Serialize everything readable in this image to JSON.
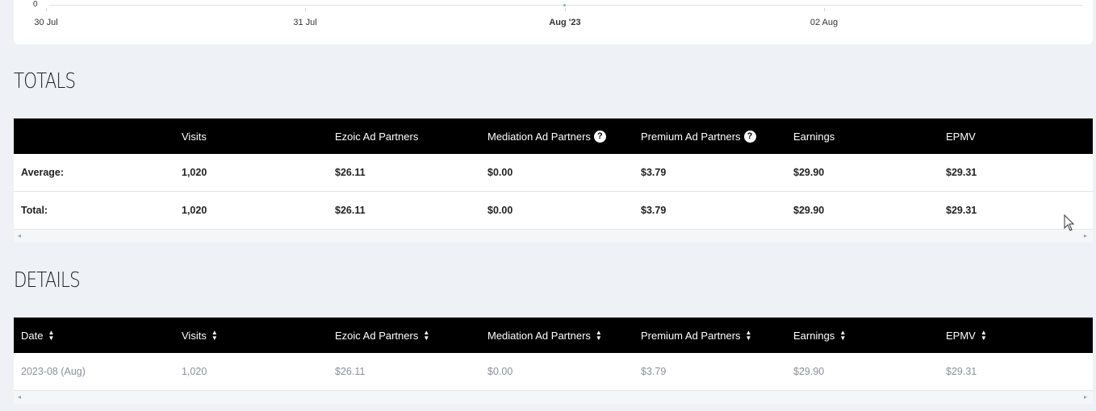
{
  "chart": {
    "y_zero": "0",
    "x_labels": [
      "30 Jul",
      "31 Jul",
      "Aug '23",
      "02 Aug"
    ]
  },
  "totals": {
    "title": "TOTALS",
    "headers": [
      "",
      "Visits",
      "Ezoic Ad Partners",
      "Mediation Ad Partners",
      "Premium Ad Partners",
      "Earnings",
      "EPMV"
    ],
    "rows": [
      [
        "Average:",
        "1,020",
        "$26.11",
        "$0.00",
        "$3.79",
        "$29.90",
        "$29.31"
      ],
      [
        "Total:",
        "1,020",
        "$26.11",
        "$0.00",
        "$3.79",
        "$29.90",
        "$29.31"
      ]
    ]
  },
  "details": {
    "title": "DETAILS",
    "headers": [
      "Date",
      "Visits",
      "Ezoic Ad Partners",
      "Mediation Ad Partners",
      "Premium Ad Partners",
      "Earnings",
      "EPMV"
    ],
    "rows": [
      [
        "2023-08 (Aug)",
        "1,020",
        "$26.11",
        "$0.00",
        "$3.79",
        "$29.90",
        "$29.31"
      ]
    ]
  },
  "icons": {
    "help": "?",
    "sort_up": "▲",
    "sort_down": "▼",
    "scroll_left": "◂",
    "scroll_right": "▸"
  }
}
